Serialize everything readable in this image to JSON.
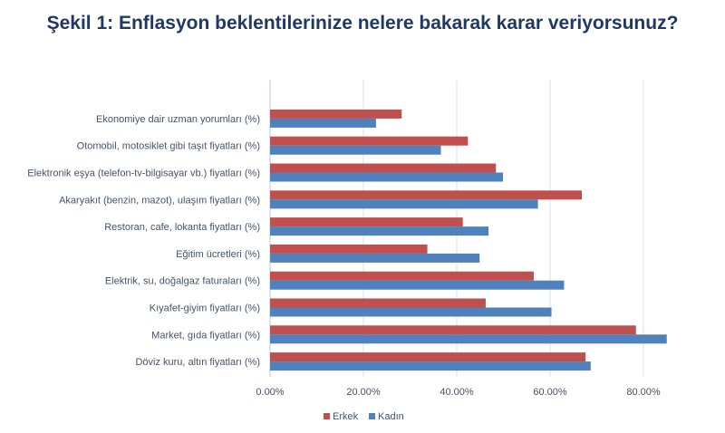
{
  "chart_data": {
    "type": "bar",
    "orientation": "horizontal",
    "title": "Şekil 1: Enflasyon beklentilerinize nelere bakarak karar veriyorsunuz?",
    "categories": [
      "Ekonomiye dair uzman yorumları (%)",
      "Otomobil, motosiklet gibi taşıt fiyatları (%)",
      "Elektronik eşya (telefon-tv-bilgisayar vb.) fiyatları (%)",
      "Akaryakıt (benzin, mazot), ulaşım fiyatları (%)",
      "Restoran, cafe, lokanta fiyatları (%)",
      "Eğitim ücretleri (%)",
      "Elektrik, su, doğalgaz faturaları (%)",
      "Kıyafet-giyim fiyatları (%)",
      "Market, gıda fiyatları (%)",
      "Döviz kuru, altın fiyatları (%)"
    ],
    "series": [
      {
        "name": "Erkek",
        "color": "#c0504d",
        "values": [
          28.2,
          42.4,
          48.4,
          66.8,
          41.3,
          33.7,
          56.5,
          46.2,
          78.4,
          67.6
        ]
      },
      {
        "name": "Kadın",
        "color": "#4f81bd",
        "values": [
          22.7,
          36.6,
          49.9,
          57.4,
          46.8,
          44.9,
          63.0,
          60.3,
          85.0,
          68.7
        ]
      }
    ],
    "xlim": [
      0,
      85
    ],
    "xticks": [
      "0.00%",
      "20.00%",
      "40.00%",
      "60.00%",
      "80.00%"
    ],
    "xtick_values": [
      0,
      20,
      40,
      60,
      80
    ],
    "grid": true,
    "legend": "bottom"
  }
}
